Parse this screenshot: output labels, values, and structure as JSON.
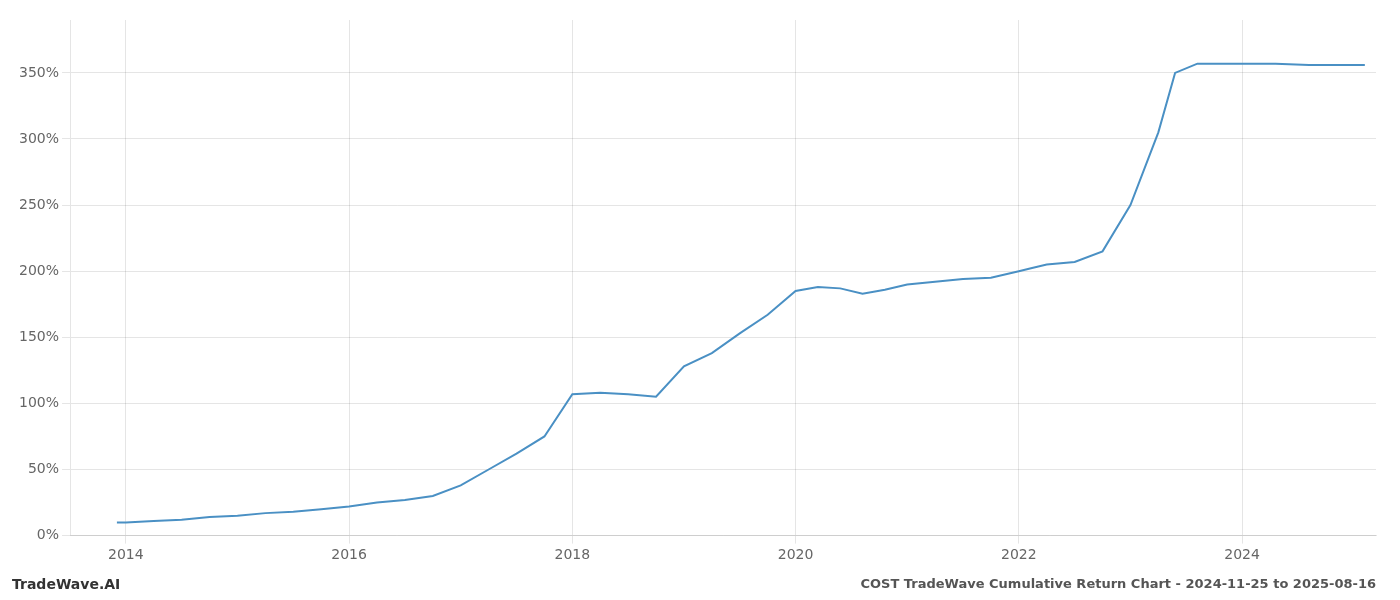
{
  "chart_data": {
    "type": "line",
    "title": "COST TradeWave Cumulative Return Chart - 2024-11-25 to 2025-08-16",
    "annotations": [
      "TradeWave.AI"
    ],
    "color": "#4a90c4",
    "grid": true,
    "x": [
      2013.92,
      2014.0,
      2014.25,
      2014.5,
      2014.75,
      2015.0,
      2015.25,
      2015.5,
      2015.75,
      2016.0,
      2016.25,
      2016.5,
      2016.75,
      2017.0,
      2017.25,
      2017.5,
      2017.75,
      2018.0,
      2018.25,
      2018.5,
      2018.75,
      2019.0,
      2019.25,
      2019.5,
      2019.75,
      2020.0,
      2020.2,
      2020.4,
      2020.6,
      2020.8,
      2021.0,
      2021.25,
      2021.5,
      2021.75,
      2022.0,
      2022.1,
      2022.25,
      2022.5,
      2022.75,
      2023.0,
      2023.25,
      2023.4,
      2023.6,
      2023.8,
      2024.0,
      2024.3,
      2024.6,
      2024.9,
      2025.1
    ],
    "values": [
      10,
      10,
      11,
      12,
      14,
      15,
      17,
      18,
      20,
      22,
      25,
      27,
      30,
      38,
      50,
      62,
      75,
      107,
      108,
      107,
      105,
      128,
      138,
      153,
      167,
      185,
      188,
      187,
      183,
      186,
      190,
      192,
      194,
      195,
      200,
      202,
      205,
      207,
      215,
      250,
      305,
      350,
      357,
      357,
      357,
      357,
      356,
      356,
      356
    ],
    "xlim": [
      2013.5,
      2025.2
    ],
    "xticks": [
      2014,
      2016,
      2018,
      2020,
      2022,
      2024
    ],
    "ylim": [
      0,
      390
    ],
    "yticks": [
      {
        "value": 0,
        "label": "0%"
      },
      {
        "value": 50,
        "label": "50%"
      },
      {
        "value": 100,
        "label": "100%"
      },
      {
        "value": 150,
        "label": "150%"
      },
      {
        "value": 200,
        "label": "200%"
      },
      {
        "value": 250,
        "label": "250%"
      },
      {
        "value": 300,
        "label": "300%"
      },
      {
        "value": 350,
        "label": "350%"
      }
    ]
  }
}
